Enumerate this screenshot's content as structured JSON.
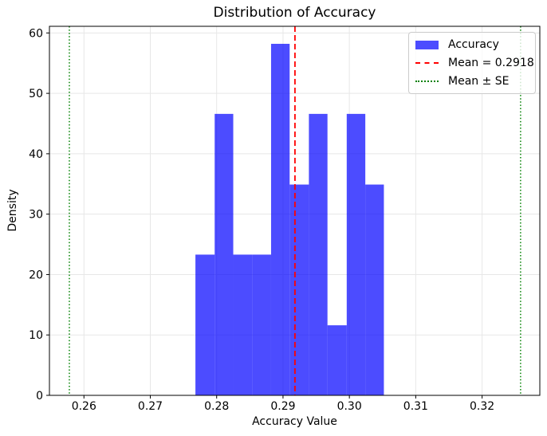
{
  "figure": {
    "title": "Distribution of Accuracy",
    "xlabel": "Accuracy Value",
    "ylabel": "Density"
  },
  "chart_data": {
    "type": "bar",
    "subtype": "histogram",
    "title": "Distribution of Accuracy",
    "xlabel": "Accuracy Value",
    "ylabel": "Density",
    "bin_edges": [
      0.2768,
      0.2797,
      0.2825,
      0.2854,
      0.2882,
      0.291,
      0.2939,
      0.2967,
      0.2996,
      0.3024,
      0.3052
    ],
    "densities": [
      23.3,
      46.6,
      23.3,
      23.3,
      58.2,
      34.9,
      46.6,
      11.6,
      46.6,
      34.9
    ],
    "mean": 0.2918,
    "mean_minus_se": 0.2578,
    "mean_plus_se": 0.3258,
    "xlim": [
      0.2548,
      0.3287
    ],
    "ylim": [
      0,
      61.1
    ],
    "x_ticks": [
      0.26,
      0.27,
      0.28,
      0.29,
      0.3,
      0.31,
      0.32
    ],
    "x_tick_labels": [
      "0.26",
      "0.27",
      "0.28",
      "0.29",
      "0.30",
      "0.31",
      "0.32"
    ],
    "y_ticks": [
      0,
      10,
      20,
      30,
      40,
      50,
      60
    ],
    "y_tick_labels": [
      "0",
      "10",
      "20",
      "30",
      "40",
      "50",
      "60"
    ],
    "grid": true,
    "legend_position": "upper right",
    "legend": {
      "entries": [
        {
          "marker": "patch",
          "color": "#0000FF",
          "opacity": 0.7,
          "label": "Accuracy"
        },
        {
          "marker": "dashed",
          "color": "#FF0000",
          "label": "Mean = 0.2918"
        },
        {
          "marker": "dotted",
          "color": "#008000",
          "label": "Mean ± SE"
        }
      ]
    },
    "colors": {
      "bar": "#0000FF",
      "bar_opacity": 0.7,
      "mean_line": "#FF0000",
      "se_line": "#008000",
      "grid": "#E7E7E7",
      "spine": "#000000",
      "text": "#000000"
    }
  }
}
